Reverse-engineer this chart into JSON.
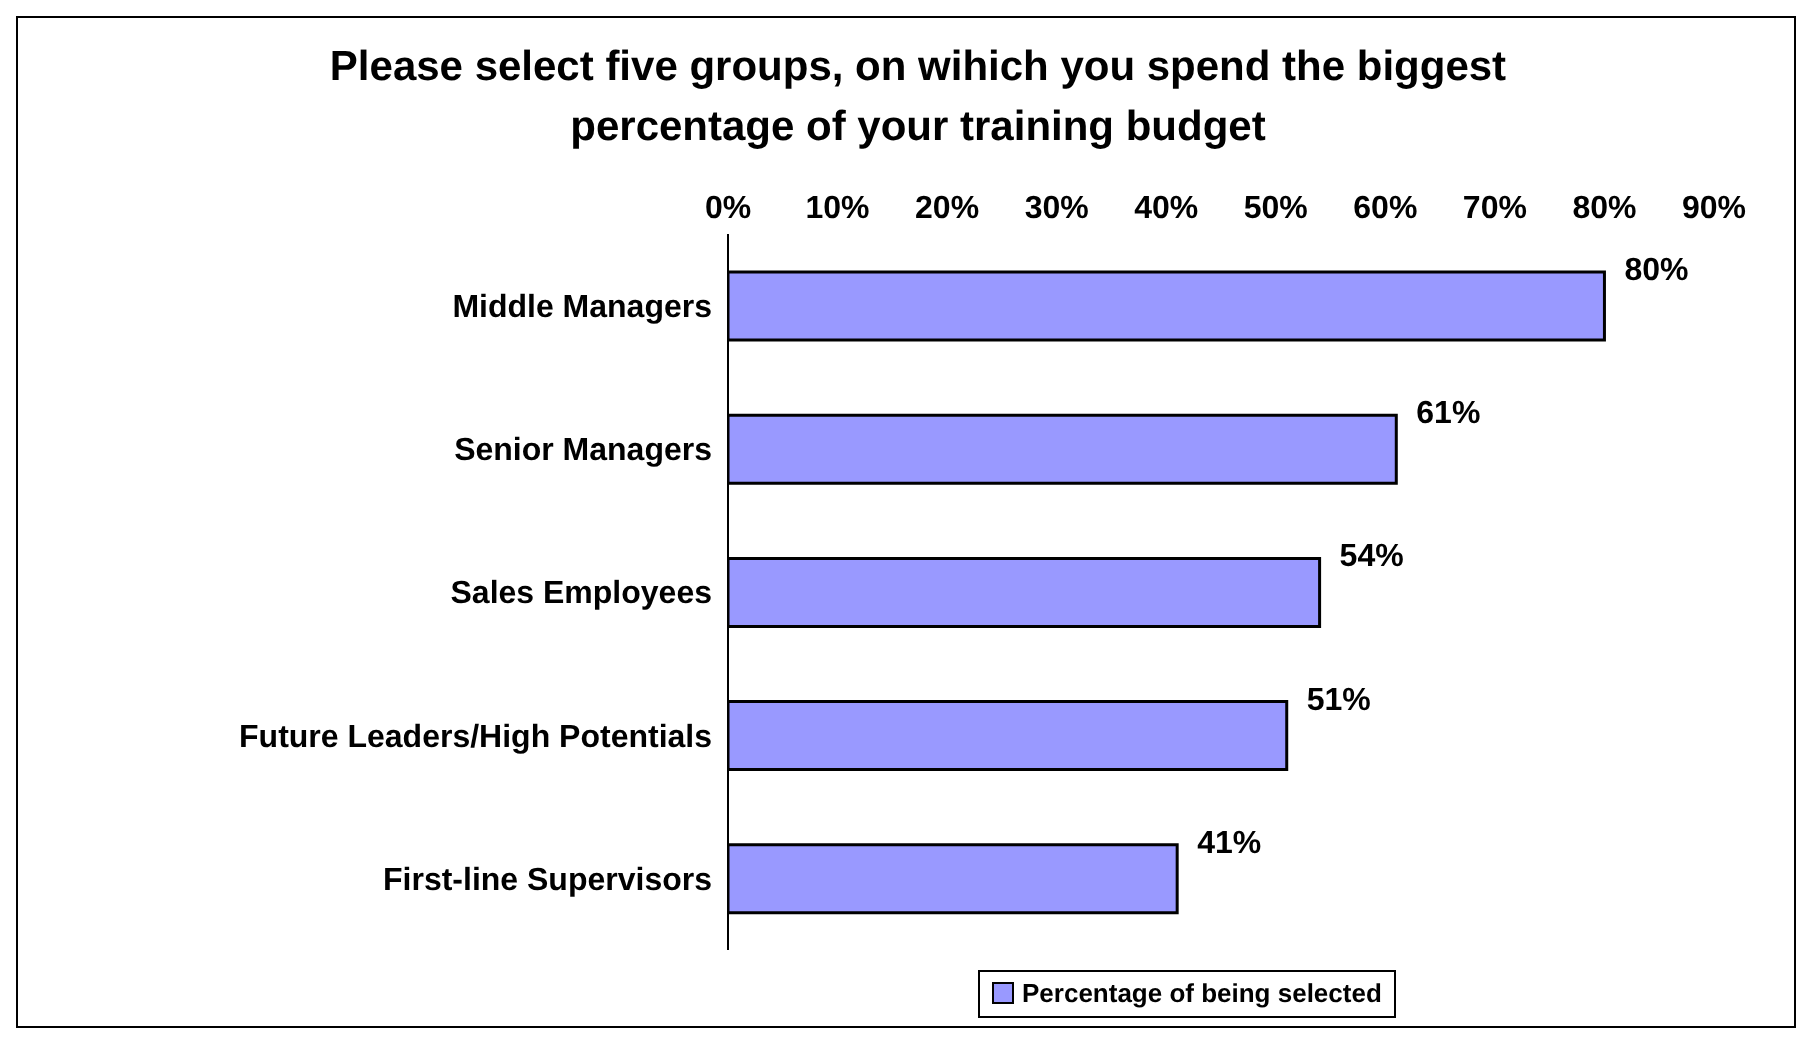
{
  "chart_data": {
    "type": "bar",
    "orientation": "horizontal",
    "title": "Please select five groups, on wihich you spend the biggest percentage of your training budget",
    "categories": [
      "Middle Managers",
      "Senior Managers",
      "Sales Employees",
      "Future Leaders/High Potentials",
      "First-line Supervisors"
    ],
    "series": [
      {
        "name": "Percentage of being selected",
        "color": "#9999ff",
        "values": [
          80,
          61,
          54,
          51,
          41
        ],
        "value_labels": [
          "80%",
          "61%",
          "54%",
          "51%",
          "41%"
        ]
      }
    ],
    "xlim": [
      0,
      90
    ],
    "xticks": [
      {
        "value": 0,
        "label": "0%"
      },
      {
        "value": 10,
        "label": "10%"
      },
      {
        "value": 20,
        "label": "20%"
      },
      {
        "value": 30,
        "label": "30%"
      },
      {
        "value": 40,
        "label": "40%"
      },
      {
        "value": 50,
        "label": "50%"
      },
      {
        "value": 60,
        "label": "60%"
      },
      {
        "value": 70,
        "label": "70%"
      },
      {
        "value": 80,
        "label": "80%"
      },
      {
        "value": 90,
        "label": "90%"
      }
    ],
    "grid": false,
    "legend": "bottom"
  }
}
